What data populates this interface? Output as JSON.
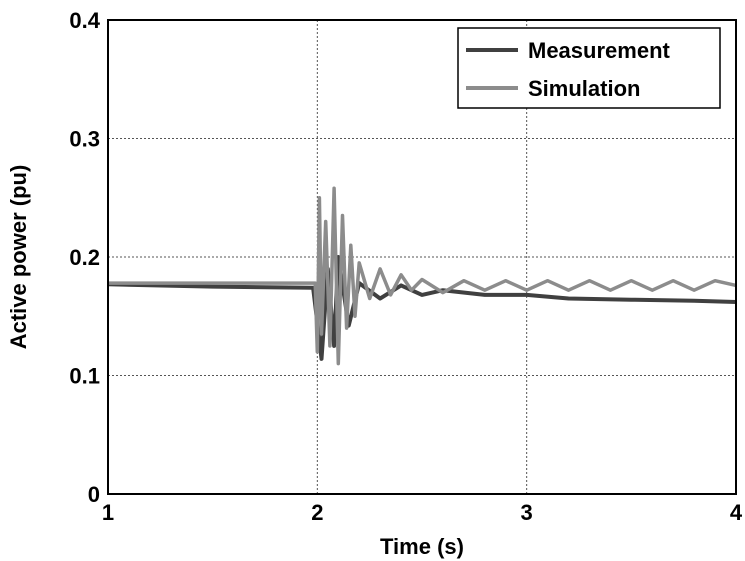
{
  "chart_data": {
    "type": "line",
    "xlabel": "Time (s)",
    "ylabel": "Active power (pu)",
    "xlim": [
      1,
      4
    ],
    "ylim": [
      0,
      0.4
    ],
    "x_ticks": [
      1,
      2,
      3,
      4
    ],
    "x_tick_labels": [
      "1",
      "2",
      "3",
      "4"
    ],
    "y_ticks": [
      0,
      0.1,
      0.2,
      0.3,
      0.4
    ],
    "y_tick_labels": [
      "0",
      "0.1",
      "0.2",
      "0.3",
      "0.4"
    ],
    "grid": true,
    "legend_position": "top-right",
    "series": [
      {
        "name": "Measurement",
        "color": "#404040",
        "x": [
          1.0,
          1.5,
          1.98,
          2.0,
          2.02,
          2.05,
          2.08,
          2.1,
          2.15,
          2.2,
          2.3,
          2.4,
          2.5,
          2.6,
          2.8,
          3.0,
          3.2,
          3.5,
          3.8,
          4.0
        ],
        "y": [
          0.177,
          0.175,
          0.174,
          0.145,
          0.114,
          0.19,
          0.125,
          0.2,
          0.142,
          0.178,
          0.165,
          0.176,
          0.168,
          0.172,
          0.168,
          0.168,
          0.165,
          0.164,
          0.163,
          0.162
        ]
      },
      {
        "name": "Simulation",
        "color": "#8c8c8c",
        "x": [
          1.0,
          1.5,
          1.99,
          2.0,
          2.01,
          2.02,
          2.04,
          2.06,
          2.08,
          2.1,
          2.12,
          2.14,
          2.16,
          2.18,
          2.2,
          2.25,
          2.3,
          2.35,
          2.4,
          2.45,
          2.5,
          2.6,
          2.7,
          2.8,
          2.9,
          3.0,
          3.1,
          3.2,
          3.3,
          3.4,
          3.5,
          3.6,
          3.7,
          3.8,
          3.9,
          4.0
        ],
        "y": [
          0.178,
          0.178,
          0.178,
          0.12,
          0.25,
          0.135,
          0.23,
          0.125,
          0.258,
          0.11,
          0.235,
          0.14,
          0.21,
          0.15,
          0.195,
          0.165,
          0.19,
          0.168,
          0.185,
          0.172,
          0.181,
          0.17,
          0.18,
          0.172,
          0.18,
          0.172,
          0.18,
          0.172,
          0.18,
          0.172,
          0.18,
          0.172,
          0.18,
          0.172,
          0.18,
          0.176
        ]
      }
    ]
  }
}
